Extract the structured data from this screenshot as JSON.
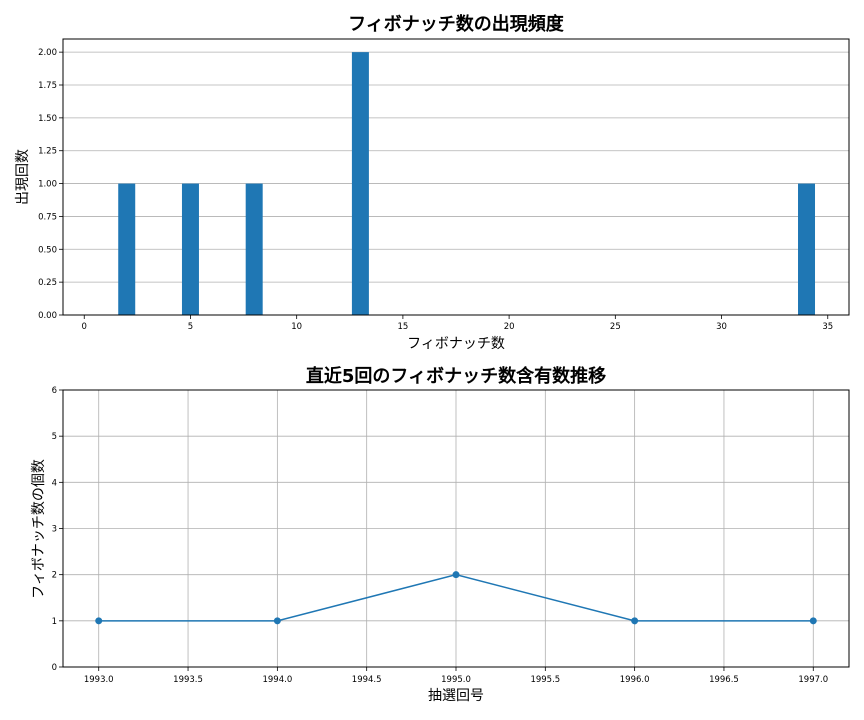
{
  "chart_data": [
    {
      "type": "bar",
      "title": "フィボナッチ数の出現頻度",
      "xlabel": "フィボナッチ数",
      "ylabel": "出現回数",
      "x": [
        2,
        5,
        8,
        13,
        34
      ],
      "values": [
        1,
        1,
        1,
        2,
        1
      ],
      "xlim": [
        -1,
        36
      ],
      "ylim": [
        0,
        2.1
      ],
      "xticks": [
        0,
        5,
        10,
        15,
        20,
        25,
        30,
        35
      ],
      "xtick_labels": [
        "0",
        "5",
        "10",
        "15",
        "20",
        "25",
        "30",
        "35"
      ],
      "yticks": [
        0,
        0.25,
        0.5,
        0.75,
        1.0,
        1.25,
        1.5,
        1.75,
        2.0
      ],
      "ytick_labels": [
        "0.00",
        "0.25",
        "0.50",
        "0.75",
        "1.00",
        "1.25",
        "1.50",
        "1.75",
        "2.00"
      ],
      "grid": "y",
      "color": "#1f77b4"
    },
    {
      "type": "line",
      "title": "直近5回のフィボナッチ数含有数推移",
      "xlabel": "抽選回号",
      "ylabel": "フィボナッチ数の個数",
      "x": [
        1993,
        1994,
        1995,
        1996,
        1997
      ],
      "values": [
        1,
        1,
        2,
        1,
        1
      ],
      "xlim": [
        1992.8,
        1997.2
      ],
      "ylim": [
        0,
        6
      ],
      "xticks": [
        1993.0,
        1993.5,
        1994.0,
        1994.5,
        1995.0,
        1995.5,
        1996.0,
        1996.5,
        1997.0
      ],
      "xtick_labels": [
        "1993.0",
        "1993.5",
        "1994.0",
        "1994.5",
        "1995.0",
        "1995.5",
        "1996.0",
        "1996.5",
        "1997.0"
      ],
      "yticks": [
        0,
        1,
        2,
        3,
        4,
        5,
        6
      ],
      "ytick_labels": [
        "0",
        "1",
        "2",
        "3",
        "4",
        "5",
        "6"
      ],
      "grid": "both",
      "marker": "circle",
      "color": "#1f77b4"
    }
  ]
}
